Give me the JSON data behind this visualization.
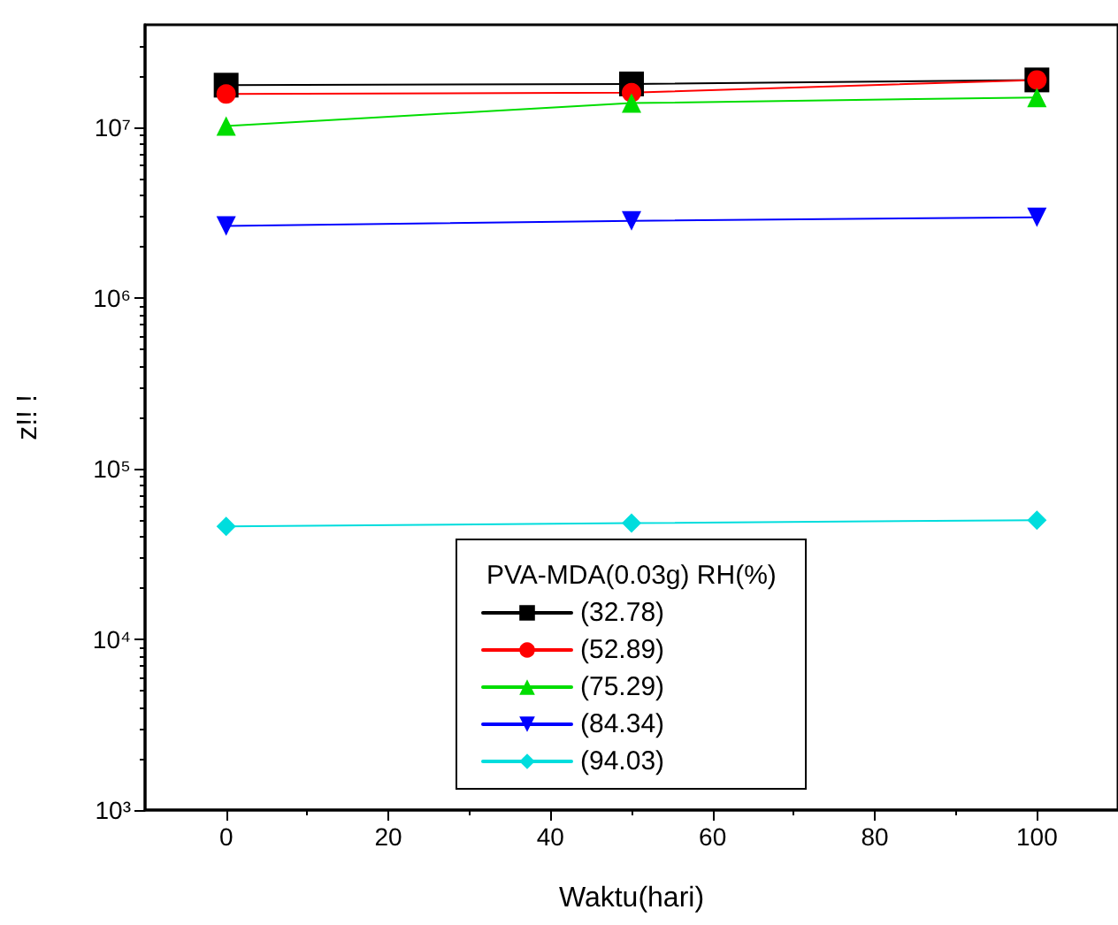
{
  "chart_data": {
    "type": "line",
    "xlabel": "Waktu(hari)",
    "ylabel": "z!! !",
    "legend_title": "PVA-MDA(0.03g) RH(%)",
    "legend": "bottom",
    "grid": false,
    "log": "y",
    "x": [
      0,
      50,
      100
    ],
    "xlim": [
      -10,
      110
    ],
    "xticks": [
      0,
      20,
      40,
      60,
      80,
      100
    ],
    "ylim": [
      1000,
      40000000
    ],
    "yticks": [
      {
        "value": 1000,
        "label": "10³"
      },
      {
        "value": 10000,
        "label": "10⁴"
      },
      {
        "value": 100000,
        "label": "10⁵"
      },
      {
        "value": 1000000,
        "label": "10⁶"
      },
      {
        "value": 10000000,
        "label": "10⁷"
      }
    ],
    "series": [
      {
        "name": "(32.78)",
        "color": "#000000",
        "marker": "square",
        "values": [
          17700000,
          18000000,
          19000000
        ]
      },
      {
        "name": "(52.89)",
        "color": "#ff0000",
        "marker": "circle",
        "values": [
          15700000,
          16000000,
          19000000
        ]
      },
      {
        "name": "(75.29)",
        "color": "#00dd00",
        "marker": "triangle",
        "values": [
          10200000,
          13900000,
          15000000
        ]
      },
      {
        "name": "(84.34)",
        "color": "#0000ff",
        "marker": "triangle-down",
        "values": [
          2650000,
          2840000,
          2980000
        ]
      },
      {
        "name": "(94.03)",
        "color": "#00dddd",
        "marker": "diamond",
        "values": [
          46000,
          48000,
          50000
        ]
      }
    ]
  }
}
